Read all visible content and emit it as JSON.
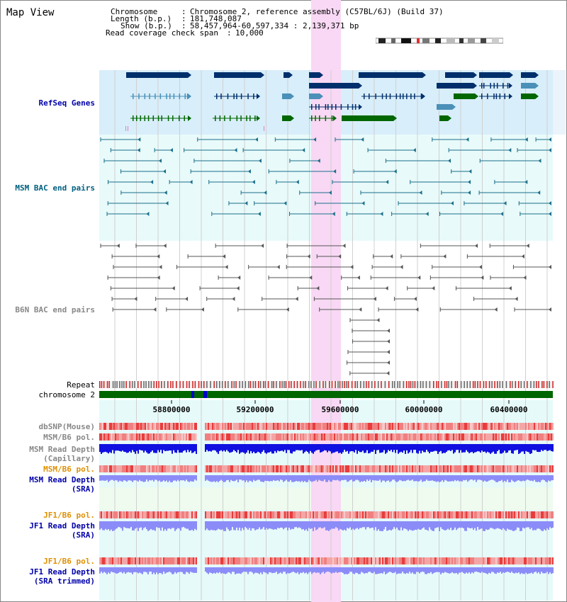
{
  "page_title": "Map View",
  "header": {
    "chromosome_key": "Chromosome",
    "chromosome_value": "Chromosome 2, reference assembly (C57BL/6J) (Build 37)",
    "length_key": "Length (b.p.)",
    "length_value": "181,748,087",
    "show_key": "Show (b.p.)",
    "show_value": "58,457,964-60,597,334 : 2,139,371 bp",
    "coverage_key": "Read coverage check span",
    "coverage_value": "10,000"
  },
  "tracks": {
    "refseq": "RefSeq Genes",
    "msm_bac": "MSM BAC end pairs",
    "b6n_bac": "B6N BAC end pairs",
    "repeat": "Repeat",
    "chromosome": "chromosome 2",
    "dbsnp": "dbSNP(Mouse)",
    "msm_b6_pol_1": "MSM/B6 pol.",
    "msm_depth_cap_1": "MSM Read Depth",
    "msm_depth_cap_2": "(Capillary)",
    "msm_b6_pol_2": "MSM/B6 pol.",
    "msm_depth_sra_1": "MSM Read Depth",
    "msm_depth_sra_2": "(SRA)",
    "jf1_b6_pol_1": "JF1/B6 pol.",
    "jf1_depth_sra_1": "JF1 Read Depth",
    "jf1_depth_sra_2": "(SRA)",
    "jf1_b6_pol_2": "JF1/B6 pol.",
    "jf1_depth_trim_1": "JF1 Read Depth",
    "jf1_depth_trim_2": "(SRA trimmed)"
  },
  "axis": {
    "ticks": [
      "58800000",
      "59200000",
      "59600000",
      "60000000",
      "60400000"
    ]
  },
  "colors": {
    "refseq_bg": "#d8eefa",
    "bac_bg": "#e8fafa",
    "highlight": "#f8d8f4",
    "gene_navy": "#002f6c",
    "gene_steel": "#4a90b8",
    "gene_green": "#006600",
    "bac_teal": "#1a6f8a",
    "bac_gray": "#555555",
    "refseq_label": "#0000aa",
    "msm_label": "#006080",
    "gray_label": "#888888",
    "orange_label": "#e09000",
    "blue_label": "#0000aa",
    "depth_blue": "#1010e0",
    "depth_light": "#8c8cf8",
    "chrom_green": "#006600"
  }
}
